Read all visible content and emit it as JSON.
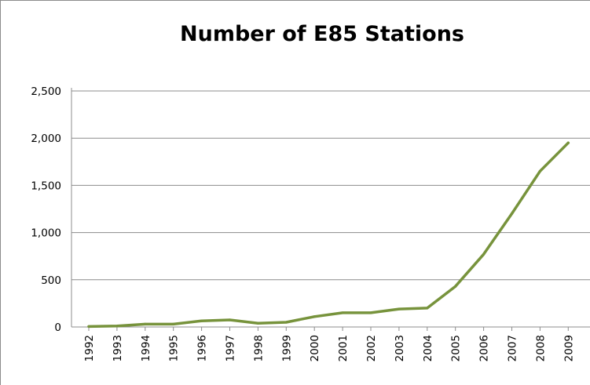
{
  "chart_data": {
    "type": "line",
    "title": "Number of E85 Stations",
    "xlabel": "",
    "ylabel": "",
    "categories": [
      "1992",
      "1993",
      "1994",
      "1995",
      "1996",
      "1997",
      "1998",
      "1999",
      "2000",
      "2001",
      "2002",
      "2003",
      "2004",
      "2005",
      "2006",
      "2007",
      "2008",
      "2009"
    ],
    "series": [
      {
        "values": [
          5,
          10,
          30,
          30,
          65,
          75,
          40,
          50,
          110,
          150,
          150,
          190,
          200,
          430,
          770,
          1200,
          1650,
          1950
        ]
      }
    ],
    "ylim": [
      0,
      2500
    ],
    "yticks": [
      0,
      500,
      1000,
      1500,
      2000,
      2500
    ],
    "ytick_labels": [
      "0",
      "500",
      "1,000",
      "1,500",
      "2,000",
      "2,500"
    ],
    "grid": true,
    "legend": "none",
    "colors": {
      "line": "#77933C",
      "grid": "#8c8c8c",
      "axis": "#8c8c8c"
    }
  }
}
